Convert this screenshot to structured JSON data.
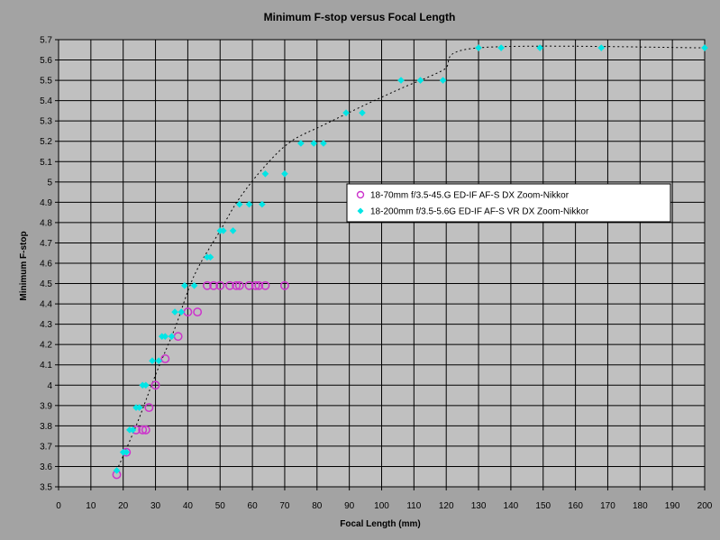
{
  "chart_data": {
    "type": "scatter",
    "title": "Minimum F-stop versus Focal Length",
    "xlabel": "Focal Length (mm)",
    "ylabel": "Minimum F-stop",
    "xlim": [
      0,
      200
    ],
    "ylim": [
      3.5,
      5.7
    ],
    "x_ticks": [
      "0",
      "10",
      "20",
      "30",
      "40",
      "50",
      "60",
      "70",
      "80",
      "90",
      "100",
      "110",
      "120",
      "130",
      "140",
      "150",
      "160",
      "170",
      "180",
      "190",
      "200"
    ],
    "y_ticks": [
      "3.5",
      "3.6",
      "3.7",
      "3.8",
      "3.9",
      "4",
      "4.1",
      "4.2",
      "4.3",
      "4.4",
      "4.5",
      "4.6",
      "4.7",
      "4.8",
      "4.9",
      "5",
      "5.1",
      "5.2",
      "5.3",
      "5.4",
      "5.5",
      "5.6",
      "5.7"
    ],
    "grid": true,
    "legend_position": "right-center",
    "colors": {
      "plot_bg": "#c0c0c0",
      "grid": "#000000",
      "series1": "#cc33cc",
      "series2": "#00e5e5",
      "trend": "#000000"
    },
    "series": [
      {
        "name": "18-70mm f/3.5-45.G ED-IF AF-S DX Zoom-Nikkor",
        "marker": "circle-open",
        "points": [
          [
            18,
            3.56
          ],
          [
            21,
            3.67
          ],
          [
            24,
            3.78
          ],
          [
            26,
            3.78
          ],
          [
            27,
            3.78
          ],
          [
            28,
            3.89
          ],
          [
            30,
            4.0
          ],
          [
            33,
            4.13
          ],
          [
            37,
            4.24
          ],
          [
            40,
            4.36
          ],
          [
            43,
            4.36
          ],
          [
            46,
            4.49
          ],
          [
            48,
            4.49
          ],
          [
            50,
            4.49
          ],
          [
            53,
            4.49
          ],
          [
            55,
            4.49
          ],
          [
            56,
            4.49
          ],
          [
            59,
            4.49
          ],
          [
            61,
            4.49
          ],
          [
            62,
            4.49
          ],
          [
            64,
            4.49
          ],
          [
            70,
            4.49
          ]
        ]
      },
      {
        "name": "18-200mm f/3.5-5.6G ED-IF AF-S VR DX Zoom-Nikkor",
        "marker": "diamond-filled",
        "points": [
          [
            18,
            3.58
          ],
          [
            20,
            3.67
          ],
          [
            21,
            3.67
          ],
          [
            22,
            3.78
          ],
          [
            23,
            3.78
          ],
          [
            24,
            3.89
          ],
          [
            25,
            3.89
          ],
          [
            26,
            4.0
          ],
          [
            27,
            4.0
          ],
          [
            29,
            4.12
          ],
          [
            31,
            4.12
          ],
          [
            32,
            4.24
          ],
          [
            33,
            4.24
          ],
          [
            35,
            4.24
          ],
          [
            36,
            4.36
          ],
          [
            38,
            4.36
          ],
          [
            39,
            4.49
          ],
          [
            42,
            4.49
          ],
          [
            46,
            4.63
          ],
          [
            47,
            4.63
          ],
          [
            50,
            4.76
          ],
          [
            51,
            4.76
          ],
          [
            54,
            4.76
          ],
          [
            56,
            4.89
          ],
          [
            59,
            4.89
          ],
          [
            63,
            4.89
          ],
          [
            64,
            5.04
          ],
          [
            70,
            5.04
          ],
          [
            75,
            5.19
          ],
          [
            79,
            5.19
          ],
          [
            82,
            5.19
          ],
          [
            89,
            5.34
          ],
          [
            94,
            5.34
          ],
          [
            106,
            5.5
          ],
          [
            112,
            5.5
          ],
          [
            119,
            5.5
          ],
          [
            130,
            5.66
          ],
          [
            137,
            5.66
          ],
          [
            149,
            5.66
          ],
          [
            168,
            5.66
          ],
          [
            200,
            5.66
          ]
        ]
      }
    ],
    "trendline": {
      "style": "dotted",
      "points": [
        [
          18,
          3.58
        ],
        [
          24,
          3.8
        ],
        [
          30,
          4.05
        ],
        [
          36,
          4.28
        ],
        [
          42,
          4.54
        ],
        [
          50,
          4.76
        ],
        [
          56,
          4.92
        ],
        [
          64,
          5.08
        ],
        [
          72,
          5.2
        ],
        [
          82,
          5.28
        ],
        [
          95,
          5.38
        ],
        [
          106,
          5.46
        ],
        [
          119,
          5.55
        ],
        [
          130,
          5.66
        ],
        [
          200,
          5.66
        ]
      ]
    }
  }
}
